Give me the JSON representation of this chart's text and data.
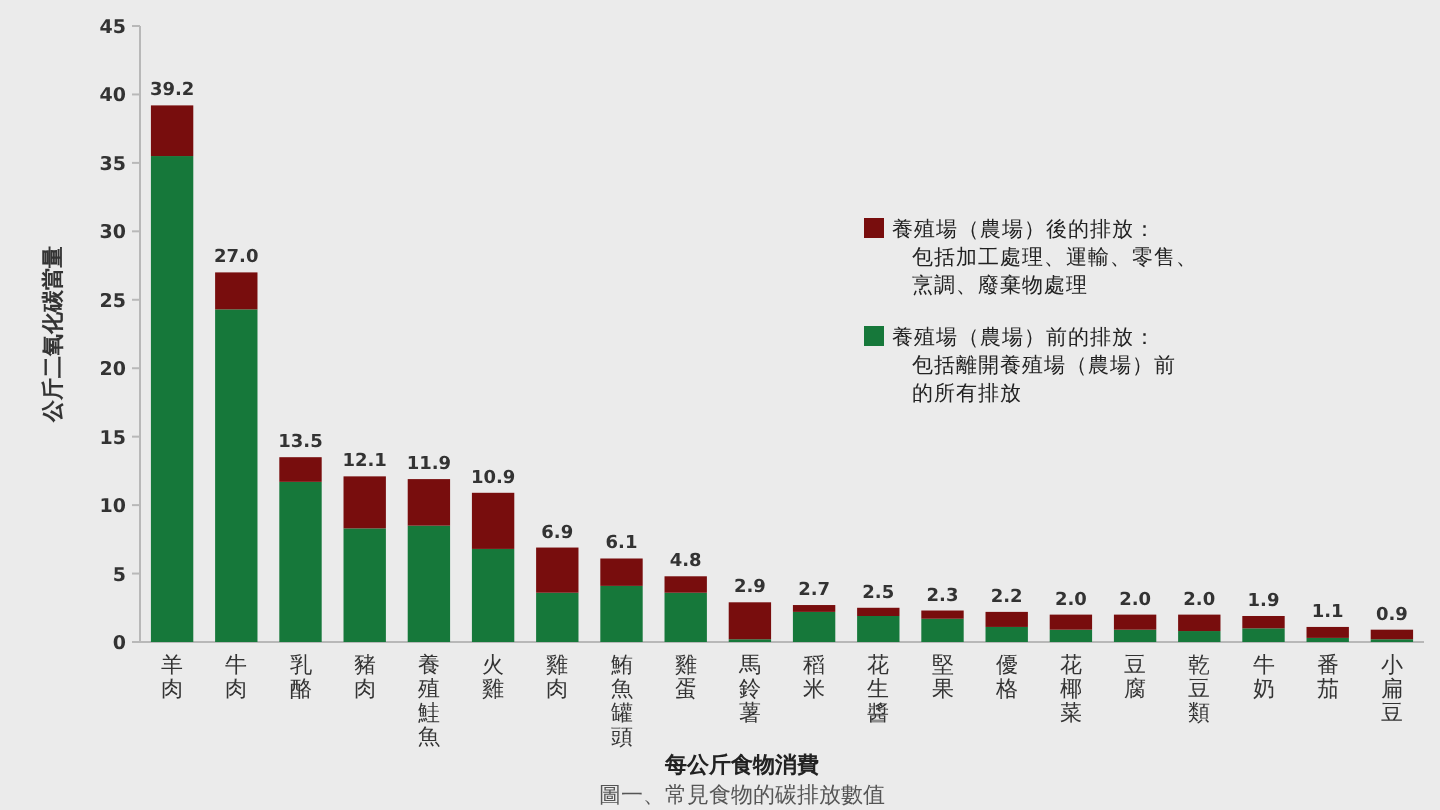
{
  "chart_data": {
    "type": "bar",
    "stacked": true,
    "xlabel": "每公斤食物消費",
    "ylabel": "公斤二氧化碳當量",
    "annotations": [
      "圖一、常見食物的碳排放數值"
    ],
    "categories": [
      "羊肉",
      "牛肉",
      "乳酪",
      "豬肉",
      "養殖鮭魚",
      "火雞",
      "雞肉",
      "鮪魚罐頭",
      "雞蛋",
      "馬鈴薯",
      "稻米",
      "花生醬",
      "堅果",
      "優格",
      "花椰菜",
      "豆腐",
      "乾豆類",
      "牛奶",
      "番茄",
      "小扁豆"
    ],
    "series": [
      {
        "name": "養殖場（農場）前的排放：包括離開養殖場（農場）前的所有排放",
        "color": "#16783a",
        "values": [
          35.5,
          24.3,
          11.7,
          8.3,
          8.5,
          6.8,
          3.6,
          4.1,
          3.6,
          0.2,
          2.2,
          1.9,
          1.7,
          1.1,
          0.9,
          0.9,
          0.8,
          1.0,
          0.3,
          0.2
        ]
      },
      {
        "name": "養殖場（農場）後的排放：包括加工處理、運輸、零售、烹調、廢棄物處理",
        "color": "#780d0d",
        "values": [
          3.7,
          2.7,
          1.8,
          3.8,
          3.4,
          4.1,
          3.3,
          2.0,
          1.2,
          2.7,
          0.5,
          0.6,
          0.6,
          1.1,
          1.1,
          1.1,
          1.2,
          0.9,
          0.8,
          0.7
        ]
      }
    ],
    "totals": [
      "39.2",
      "27.0",
      "13.5",
      "12.1",
      "11.9",
      "10.9",
      "6.9",
      "6.1",
      "4.8",
      "2.9",
      "2.7",
      "2.5",
      "2.3",
      "2.2",
      "2.0",
      "2.0",
      "2.0",
      "1.9",
      "1.1",
      "0.9"
    ],
    "ylim": [
      0,
      45
    ],
    "yticks": [
      0,
      5,
      10,
      15,
      20,
      25,
      30,
      35,
      40,
      45
    ],
    "legend": "top right"
  }
}
